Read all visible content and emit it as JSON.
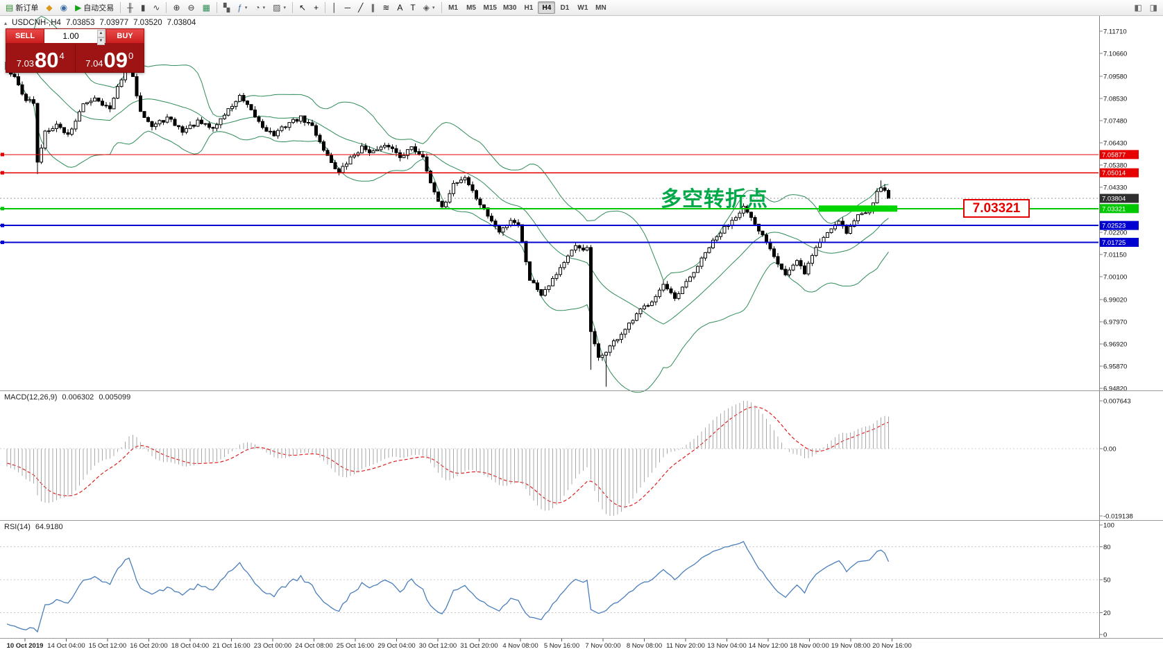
{
  "toolbar": {
    "caret_glyph": "▾",
    "active_timeframe": "H4",
    "timeframes": [
      "M1",
      "M5",
      "M15",
      "M30",
      "H1",
      "H4",
      "D1",
      "W1",
      "MN"
    ],
    "items": [
      {
        "type": "btn",
        "name": "new-order-button",
        "icon": "new-order-icon",
        "glyph": "▤",
        "glyph_color": "#2c8a2c",
        "label": "新订单"
      },
      {
        "type": "btn",
        "name": "market-watch-button",
        "icon": "market-watch-icon",
        "glyph": "◆",
        "glyph_color": "#d99a1b"
      },
      {
        "type": "btn",
        "name": "profiles-button",
        "icon": "profiles-icon",
        "glyph": "◉",
        "glyph_color": "#3a6ea5"
      },
      {
        "type": "btn",
        "name": "autotrading-button",
        "icon": "autotrading-play-icon",
        "glyph": "▶",
        "glyph_color": "#17a317",
        "label": "自动交易"
      },
      {
        "type": "sep"
      },
      {
        "type": "btn",
        "name": "bar-chart-button",
        "icon": "bar-chart-icon",
        "glyph": "╫",
        "glyph_color": "#444"
      },
      {
        "type": "btn",
        "name": "candlestick-chart-button",
        "icon": "candlestick-icon",
        "glyph": "▮",
        "glyph_color": "#444"
      },
      {
        "type": "btn",
        "name": "line-chart-button",
        "icon": "line-chart-icon",
        "glyph": "∿",
        "glyph_color": "#444"
      },
      {
        "type": "sep"
      },
      {
        "type": "btn",
        "name": "zoom-in-button",
        "icon": "zoom-in-icon",
        "glyph": "⊕",
        "glyph_color": "#333"
      },
      {
        "type": "btn",
        "name": "zoom-out-button",
        "icon": "zoom-out-icon",
        "glyph": "⊖",
        "glyph_color": "#333"
      },
      {
        "type": "btn",
        "name": "tile-windows-button",
        "icon": "tile-windows-icon",
        "glyph": "▦",
        "glyph_color": "#2e8b57"
      },
      {
        "type": "sep"
      },
      {
        "type": "btn",
        "name": "arrange-charts-button",
        "icon": "arrange-charts-icon",
        "glyph": "▚",
        "glyph_color": "#555"
      },
      {
        "type": "btn",
        "name": "indicators-button",
        "icon": "indicators-icon",
        "glyph": "ƒ",
        "glyph_color": "#3a6ea5",
        "dropdown": true
      },
      {
        "type": "btn",
        "name": "periods-button",
        "icon": "periods-clock-icon",
        "glyph": "◔",
        "glyph_color": "#555",
        "dropdown": true
      },
      {
        "type": "btn",
        "name": "templates-button",
        "icon": "templates-icon",
        "glyph": "▨",
        "glyph_color": "#555",
        "dropdown": true
      },
      {
        "type": "sep"
      },
      {
        "type": "btn",
        "name": "cursor-button",
        "icon": "cursor-icon",
        "glyph": "↖",
        "glyph_color": "#111"
      },
      {
        "type": "btn",
        "name": "crosshair-button",
        "icon": "crosshair-icon",
        "glyph": "+",
        "glyph_color": "#111"
      },
      {
        "type": "sep"
      },
      {
        "type": "btn",
        "name": "vertical-line-button",
        "icon": "vertical-line-icon",
        "glyph": "│",
        "glyph_color": "#111"
      },
      {
        "type": "btn",
        "name": "horizontal-line-button",
        "icon": "horizontal-line-icon",
        "glyph": "─",
        "glyph_color": "#111"
      },
      {
        "type": "btn",
        "name": "trendline-button",
        "icon": "trendline-icon",
        "glyph": "╱",
        "glyph_color": "#111"
      },
      {
        "type": "btn",
        "name": "channel-button",
        "icon": "channel-icon",
        "glyph": "∥",
        "glyph_color": "#111"
      },
      {
        "type": "btn",
        "name": "fibonacci-button",
        "icon": "fibonacci-icon",
        "glyph": "≋",
        "glyph_color": "#111"
      },
      {
        "type": "btn",
        "name": "text-button",
        "icon": "text-icon",
        "glyph": "A",
        "glyph_color": "#111"
      },
      {
        "type": "btn",
        "name": "text-label-button",
        "icon": "text-label-icon",
        "glyph": "T",
        "glyph_color": "#111"
      },
      {
        "type": "btn",
        "name": "shapes-button",
        "icon": "shapes-icon",
        "glyph": "◈",
        "glyph_color": "#555",
        "dropdown": true
      },
      {
        "type": "sep"
      },
      {
        "type": "timeframes"
      },
      {
        "type": "spacer"
      },
      {
        "type": "btn",
        "name": "chart-shift-button",
        "icon": "chart-shift-icon",
        "glyph": "◧",
        "glyph_color": "#666"
      },
      {
        "type": "btn",
        "name": "auto-scroll-button",
        "icon": "auto-scroll-icon",
        "glyph": "◨",
        "glyph_color": "#666"
      }
    ]
  },
  "symbol_header": {
    "icon_glyph": "▴",
    "symbol": "USDCNH-,H4",
    "open": "7.03853",
    "high": "7.03977",
    "low": "7.03520",
    "close": "7.03804"
  },
  "trade_panel": {
    "sell_label": "SELL",
    "buy_label": "BUY",
    "volume": "1.00",
    "spinner_up": "▲",
    "spinner_down": "▼",
    "sell_price_prefix": "7.03",
    "sell_price_big": "80",
    "sell_price_sup": "4",
    "buy_price_prefix": "7.04",
    "buy_price_big": "09",
    "buy_price_sup": "0"
  },
  "annotation": {
    "text": "多空转折点",
    "color": "#00a847"
  },
  "price_label_box": {
    "text": "7.03321"
  },
  "price_axis": {
    "current_price_label": "7.03804",
    "labels": [
      "7.11710",
      "7.10660",
      "7.09580",
      "7.08530",
      "7.07480",
      "7.06430",
      "7.05380",
      "7.04330",
      "7.03280",
      "7.02200",
      "7.01150",
      "7.00100",
      "6.99020",
      "6.97970",
      "6.96920",
      "6.95870",
      "6.94820"
    ]
  },
  "time_axis": {
    "labels": [
      "10 Oct 2019",
      "14 Oct 04:00",
      "15 Oct 12:00",
      "16 Oct 20:00",
      "18 Oct 04:00",
      "21 Oct 16:00",
      "23 Oct 00:00",
      "24 Oct 08:00",
      "25 Oct 16:00",
      "29 Oct 04:00",
      "30 Oct 12:00",
      "31 Oct 20:00",
      "4 Nov 08:00",
      "5 Nov 16:00",
      "7 Nov 00:00",
      "8 Nov 08:00",
      "11 Nov 20:00",
      "13 Nov 04:00",
      "14 Nov 12:00",
      "18 Nov 00:00",
      "19 Nov 08:00",
      "20 Nov 16:00"
    ]
  },
  "macd": {
    "name": "MACD(12,26,9)",
    "value_main": "0.006302",
    "value_signal": "0.005099",
    "axis_labels": [
      "0.007643",
      "0.00",
      "-0.019138"
    ]
  },
  "rsi": {
    "name": "RSI(14)",
    "value": "64.9180",
    "axis_labels": [
      "100",
      "80",
      "50",
      "20",
      "0"
    ],
    "levels": [
      80,
      50,
      20
    ]
  },
  "chart_data": {
    "type": "candlestick",
    "symbol": "USDCNH-",
    "period": "H4",
    "price_min": 6.9482,
    "price_max": 7.1171,
    "current_price": 7.03804,
    "candle_count": 232,
    "preroll": 25,
    "seed": 42,
    "price_anchors": [
      [
        -25,
        7.118
      ],
      [
        -12,
        7.11
      ],
      [
        -1,
        7.103
      ],
      [
        0,
        7.1
      ],
      [
        2,
        7.095
      ],
      [
        5,
        7.085
      ],
      [
        7,
        7.083
      ],
      [
        8,
        7.0545
      ],
      [
        10,
        7.07
      ],
      [
        13,
        7.073
      ],
      [
        16,
        7.068
      ],
      [
        20,
        7.082
      ],
      [
        23,
        7.086
      ],
      [
        27,
        7.08
      ],
      [
        30,
        7.095
      ],
      [
        31,
        7.099
      ],
      [
        32,
        7.102
      ],
      [
        35,
        7.08
      ],
      [
        38,
        7.072
      ],
      [
        42,
        7.076
      ],
      [
        46,
        7.07
      ],
      [
        50,
        7.074
      ],
      [
        54,
        7.071
      ],
      [
        58,
        7.08
      ],
      [
        61,
        7.086
      ],
      [
        64,
        7.079
      ],
      [
        67,
        7.072
      ],
      [
        70,
        7.068
      ],
      [
        74,
        7.074
      ],
      [
        77,
        7.076
      ],
      [
        80,
        7.072
      ],
      [
        84,
        7.058
      ],
      [
        87,
        7.05
      ],
      [
        90,
        7.057
      ],
      [
        93,
        7.062
      ],
      [
        96,
        7.06
      ],
      [
        100,
        7.063
      ],
      [
        103,
        7.058
      ],
      [
        106,
        7.062
      ],
      [
        109,
        7.058
      ],
      [
        112,
        7.04
      ],
      [
        114,
        7.033
      ],
      [
        117,
        7.045
      ],
      [
        120,
        7.048
      ],
      [
        123,
        7.038
      ],
      [
        126,
        7.03
      ],
      [
        129,
        7.022
      ],
      [
        132,
        7.028
      ],
      [
        134,
        7.026
      ],
      [
        137,
        7.0
      ],
      [
        140,
        6.993
      ],
      [
        143,
        7.0
      ],
      [
        146,
        7.008
      ],
      [
        149,
        7.015
      ],
      [
        152,
        7.014
      ],
      [
        153,
        6.975
      ],
      [
        155,
        6.962
      ],
      [
        157,
        6.966
      ],
      [
        160,
        6.972
      ],
      [
        163,
        6.978
      ],
      [
        166,
        6.985
      ],
      [
        169,
        6.99
      ],
      [
        172,
        6.997
      ],
      [
        175,
        6.99
      ],
      [
        178,
        6.998
      ],
      [
        181,
        7.006
      ],
      [
        184,
        7.015
      ],
      [
        187,
        7.022
      ],
      [
        190,
        7.028
      ],
      [
        193,
        7.034
      ],
      [
        196,
        7.025
      ],
      [
        199,
        7.018
      ],
      [
        202,
        7.008
      ],
      [
        204,
        7.002
      ],
      [
        207,
        7.008
      ],
      [
        209,
        7.003
      ],
      [
        212,
        7.015
      ],
      [
        215,
        7.022
      ],
      [
        218,
        7.028
      ],
      [
        220,
        7.022
      ],
      [
        223,
        7.03
      ],
      [
        226,
        7.033
      ],
      [
        229,
        7.044
      ],
      [
        231,
        7.038
      ]
    ],
    "spikes": [
      {
        "idx": 8,
        "low": 7.0495
      },
      {
        "idx": 32,
        "high": 7.106
      },
      {
        "idx": 153,
        "low": 6.957
      },
      {
        "idx": 157,
        "low": 6.949
      },
      {
        "idx": 229,
        "high": 7.0465
      }
    ],
    "hlines": [
      {
        "label": "7.05877",
        "price": 7.05877,
        "color": "#e60000",
        "width": 1.2
      },
      {
        "label": "7.05014",
        "price": 7.05014,
        "color": "#e60000",
        "width": 1.2
      },
      {
        "label": "7.03321",
        "price": 7.03321,
        "color": "#00c800",
        "width": 2
      },
      {
        "label": "7.02523",
        "price": 7.02523,
        "color": "#0000d0",
        "width": 2
      },
      {
        "label": "7.01725",
        "price": 7.01725,
        "color": "#0000d0",
        "width": 2
      }
    ],
    "thick_bar": {
      "price": 7.03321,
      "color": "#00d400"
    },
    "bollinger": {
      "period": 20,
      "deviation": 2,
      "color": "#2e8b57"
    },
    "macd_params": {
      "fast": 12,
      "slow": 26,
      "signal": 9
    },
    "rsi_params": {
      "period": 14
    }
  }
}
